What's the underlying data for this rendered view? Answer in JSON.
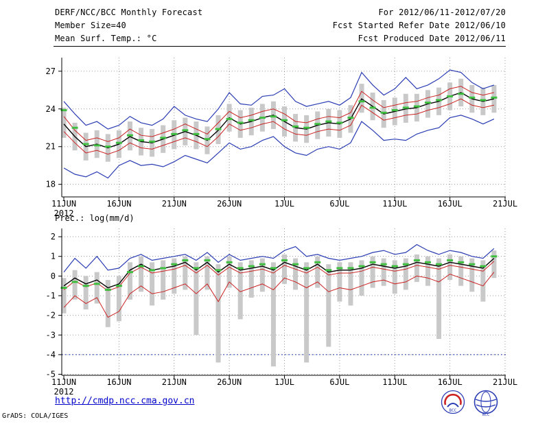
{
  "header": {
    "title": "DERF/NCC/BCC Monthly Forecast",
    "date_range": "For 2012/06/11-2012/07/20",
    "member_size": "Member Size=40",
    "refer_date": "Fcst Started Refer Date 2012/06/10",
    "produced_date": "Fcst Produced Date 2012/06/11"
  },
  "footer": {
    "url": "http://cmdp.ncc.cma.gov.cn",
    "credit": "GrADS: COLA/IGES",
    "logo_left": "BCC",
    "logo_right": "NCC"
  },
  "chart_data": [
    {
      "id": "mean-surface-temperature",
      "type": "line",
      "title": "Mean Surf. Temp.: °C",
      "xlabel": "",
      "ylabel": "",
      "grid": true,
      "x_tick_days": [
        0,
        5,
        10,
        15,
        20,
        25,
        30,
        35,
        40
      ],
      "x_tick_labels": [
        "11JUN",
        "16JUN",
        "21JUN",
        "26JUN",
        "1JUL",
        "6JUL",
        "11JUL",
        "16JUL",
        "21JUL"
      ],
      "x_first_tick_sublabel": "2012",
      "y_ticks": [
        18,
        21,
        24,
        27
      ],
      "ylim": [
        17.0,
        28.08
      ],
      "series": [
        {
          "name": "ensemble-spread-bar",
          "style": "bar",
          "color": "#c9c9c9",
          "high": [
            24.1,
            22.9,
            22.1,
            22.3,
            22.0,
            22.3,
            23.0,
            22.5,
            22.4,
            22.7,
            23.1,
            23.3,
            23.0,
            22.6,
            23.5,
            24.4,
            23.9,
            24.1,
            24.4,
            24.6,
            24.2,
            23.6,
            23.5,
            23.8,
            24.0,
            23.9,
            24.3,
            26.0,
            25.3,
            24.7,
            24.9,
            25.2,
            25.2,
            25.5,
            25.7,
            26.1,
            26.4,
            25.9,
            25.7,
            25.9
          ],
          "low": [
            21.7,
            20.7,
            19.9,
            20.1,
            19.8,
            20.1,
            20.7,
            20.3,
            20.2,
            20.5,
            20.8,
            21.1,
            20.8,
            20.4,
            21.2,
            22.2,
            21.7,
            21.9,
            22.2,
            22.4,
            21.8,
            21.4,
            21.3,
            21.6,
            21.8,
            21.7,
            22.1,
            23.7,
            23.1,
            22.5,
            22.7,
            22.9,
            23.0,
            23.3,
            23.5,
            23.9,
            24.2,
            23.7,
            23.5,
            23.7
          ]
        },
        {
          "name": "ensemble-max",
          "style": "line",
          "color": "#2a3cb4",
          "width": 1.2,
          "values": [
            24.6,
            23.6,
            22.7,
            23.0,
            22.4,
            22.7,
            23.4,
            22.9,
            22.7,
            23.2,
            24.2,
            23.5,
            23.2,
            23.0,
            24.0,
            25.3,
            24.4,
            24.3,
            25.0,
            25.1,
            25.6,
            24.6,
            24.2,
            24.4,
            24.6,
            24.3,
            24.9,
            26.9,
            25.9,
            25.1,
            25.6,
            26.5,
            25.6,
            25.9,
            26.4,
            27.1,
            26.9,
            26.1,
            25.6,
            25.9
          ]
        },
        {
          "name": "ensemble-min",
          "style": "line",
          "color": "#2a3cb4",
          "width": 1.2,
          "values": [
            19.3,
            18.8,
            18.6,
            19.0,
            18.5,
            19.5,
            19.9,
            19.5,
            19.6,
            19.4,
            19.8,
            20.3,
            20.0,
            19.7,
            20.5,
            21.3,
            20.8,
            21.0,
            21.5,
            21.8,
            21.0,
            20.5,
            20.3,
            20.8,
            21.0,
            20.8,
            21.3,
            23.0,
            22.3,
            21.5,
            21.6,
            21.5,
            22.0,
            22.3,
            22.5,
            23.3,
            23.5,
            23.2,
            22.8,
            23.2
          ]
        },
        {
          "name": "upper-quartile",
          "style": "line",
          "color": "#cc2222",
          "width": 1,
          "values": [
            23.4,
            22.3,
            21.5,
            21.7,
            21.4,
            21.7,
            22.4,
            21.9,
            21.8,
            22.1,
            22.4,
            22.8,
            22.4,
            22.0,
            22.9,
            23.8,
            23.3,
            23.5,
            23.8,
            24.0,
            23.6,
            23.0,
            22.9,
            23.2,
            23.4,
            23.3,
            23.7,
            25.4,
            24.7,
            24.1,
            24.3,
            24.5,
            24.6,
            24.9,
            25.1,
            25.6,
            25.8,
            25.3,
            25.1,
            25.3
          ]
        },
        {
          "name": "lower-quartile",
          "style": "line",
          "color": "#cc2222",
          "width": 1,
          "values": [
            22.2,
            21.3,
            20.5,
            20.7,
            20.4,
            20.7,
            21.3,
            20.9,
            20.8,
            21.1,
            21.4,
            21.7,
            21.4,
            21.0,
            21.8,
            22.8,
            22.3,
            22.5,
            22.8,
            23.0,
            22.4,
            22.0,
            21.9,
            22.2,
            22.4,
            22.3,
            22.7,
            24.3,
            23.7,
            23.1,
            23.3,
            23.5,
            23.6,
            23.9,
            24.1,
            24.4,
            24.8,
            24.3,
            24.1,
            24.3
          ]
        },
        {
          "name": "ensemble-mean",
          "style": "line",
          "color": "#000000",
          "width": 1.4,
          "values": [
            22.8,
            21.8,
            21.0,
            21.2,
            20.9,
            21.2,
            21.8,
            21.4,
            21.3,
            21.6,
            21.9,
            22.2,
            21.9,
            21.5,
            22.3,
            23.3,
            22.8,
            23.0,
            23.3,
            23.5,
            23.0,
            22.5,
            22.4,
            22.7,
            22.9,
            22.8,
            23.2,
            24.8,
            24.2,
            23.6,
            23.8,
            24.0,
            24.1,
            24.4,
            24.6,
            25.0,
            25.3,
            24.8,
            24.6,
            24.8
          ]
        },
        {
          "name": "ensemble-median",
          "style": "dash",
          "color": "#3fbf3f",
          "values": [
            23.9,
            22.5,
            21.2,
            21.1,
            21.0,
            21.3,
            21.9,
            21.5,
            21.4,
            21.7,
            22.0,
            22.3,
            22.0,
            21.6,
            22.4,
            23.2,
            22.9,
            23.1,
            23.3,
            23.4,
            23.1,
            22.6,
            22.5,
            22.8,
            23.0,
            22.9,
            23.3,
            24.6,
            24.1,
            23.7,
            23.9,
            24.1,
            24.2,
            24.5,
            24.7,
            25.0,
            25.2,
            24.9,
            24.7,
            24.9
          ]
        }
      ]
    },
    {
      "id": "precipitation",
      "type": "line",
      "title": "Prec.: log(mm/d)",
      "xlabel": "",
      "ylabel": "",
      "grid": true,
      "x_tick_days": [
        0,
        5,
        10,
        15,
        20,
        25,
        30,
        35,
        40
      ],
      "x_tick_labels": [
        "11JUN",
        "16JUN",
        "21JUN",
        "26JUN",
        "1JUL",
        "6JUL",
        "11JUL",
        "16JUL",
        "21JUL"
      ],
      "x_first_tick_sublabel": "2012",
      "y_ticks": [
        -5,
        -4,
        -3,
        -2,
        -1,
        0,
        1,
        2
      ],
      "ylim": [
        -5.05,
        2.42
      ],
      "reference_line": {
        "value": -4,
        "color": "#2a3cb4",
        "style": "dotted"
      },
      "series": [
        {
          "name": "reference-line",
          "style": "dotted-line",
          "color": "#2a3cb4",
          "value": -4
        },
        {
          "name": "ensemble-spread-bar",
          "style": "bar",
          "color": "#c9c9c9",
          "high": [
            -0.1,
            0.3,
            0.0,
            0.2,
            -0.2,
            0.0,
            0.7,
            1.0,
            0.7,
            0.8,
            0.9,
            1.0,
            0.7,
            1.0,
            0.6,
            1.0,
            0.7,
            0.8,
            0.9,
            0.7,
            1.1,
            0.9,
            0.7,
            1.0,
            0.6,
            0.7,
            0.7,
            0.8,
            1.0,
            0.9,
            0.8,
            0.9,
            1.1,
            1.0,
            0.9,
            1.1,
            1.0,
            0.9,
            0.8,
            1.3
          ],
          "low": [
            -1.9,
            -1.2,
            -1.7,
            -1.4,
            -2.6,
            -2.3,
            -1.2,
            -0.8,
            -1.5,
            -1.2,
            -0.9,
            -0.7,
            -3.0,
            -0.7,
            -4.4,
            -0.6,
            -2.2,
            -1.1,
            -0.8,
            -4.6,
            -0.4,
            -0.7,
            -4.4,
            -0.6,
            -3.6,
            -1.3,
            -1.5,
            -1.0,
            -0.6,
            -0.5,
            -0.9,
            -0.7,
            -0.3,
            -0.5,
            -3.2,
            -0.2,
            -0.5,
            -0.8,
            -1.3,
            -0.1
          ]
        },
        {
          "name": "ensemble-max",
          "style": "line",
          "color": "#2a3cb4",
          "width": 1.2,
          "values": [
            0.2,
            0.9,
            0.4,
            1.0,
            0.3,
            0.4,
            0.9,
            1.1,
            0.8,
            0.9,
            1.0,
            1.1,
            0.8,
            1.2,
            0.7,
            1.1,
            0.8,
            0.9,
            1.0,
            0.9,
            1.3,
            1.5,
            1.0,
            1.1,
            0.9,
            0.8,
            0.9,
            1.0,
            1.2,
            1.3,
            1.1,
            1.2,
            1.6,
            1.3,
            1.1,
            1.3,
            1.2,
            1.0,
            0.9,
            1.4
          ]
        },
        {
          "name": "upper-quartile",
          "style": "line",
          "color": "#cc2222",
          "width": 1,
          "values": [
            -0.7,
            -0.25,
            -0.55,
            -0.35,
            -0.75,
            -0.55,
            0.15,
            0.45,
            0.15,
            0.25,
            0.35,
            0.55,
            0.15,
            0.55,
            0.05,
            0.45,
            0.15,
            0.25,
            0.35,
            0.15,
            0.55,
            0.35,
            0.15,
            0.45,
            0.05,
            0.15,
            0.15,
            0.25,
            0.45,
            0.35,
            0.25,
            0.35,
            0.55,
            0.45,
            0.35,
            0.55,
            0.45,
            0.35,
            0.25,
            0.75
          ]
        },
        {
          "name": "lower-quartile",
          "style": "line",
          "color": "#cc2222",
          "width": 1,
          "values": [
            -1.6,
            -1.0,
            -1.4,
            -1.1,
            -2.1,
            -1.8,
            -0.9,
            -0.5,
            -0.9,
            -0.8,
            -0.6,
            -0.4,
            -0.9,
            -0.4,
            -1.3,
            -0.3,
            -0.8,
            -0.6,
            -0.4,
            -0.7,
            -0.1,
            -0.3,
            -0.6,
            -0.3,
            -0.8,
            -0.6,
            -0.7,
            -0.5,
            -0.3,
            -0.2,
            -0.4,
            -0.3,
            0.0,
            -0.1,
            -0.3,
            0.1,
            -0.1,
            -0.3,
            -0.5,
            0.2
          ]
        },
        {
          "name": "ensemble-mean",
          "style": "line",
          "color": "#000000",
          "width": 1.4,
          "values": [
            -0.5,
            -0.1,
            -0.4,
            -0.2,
            -0.6,
            -0.4,
            0.3,
            0.6,
            0.3,
            0.4,
            0.5,
            0.7,
            0.3,
            0.7,
            0.2,
            0.6,
            0.3,
            0.4,
            0.5,
            0.3,
            0.7,
            0.5,
            0.3,
            0.6,
            0.2,
            0.3,
            0.3,
            0.4,
            0.6,
            0.5,
            0.4,
            0.5,
            0.7,
            0.6,
            0.5,
            0.7,
            0.6,
            0.5,
            0.4,
            0.9
          ]
        },
        {
          "name": "ensemble-median",
          "style": "dash",
          "color": "#3fbf3f",
          "values": [
            -0.6,
            -0.3,
            -0.5,
            -0.4,
            -0.7,
            -0.5,
            0.2,
            0.5,
            0.3,
            0.4,
            0.6,
            0.8,
            0.4,
            0.8,
            0.3,
            0.7,
            0.4,
            0.5,
            0.6,
            0.4,
            0.8,
            0.6,
            0.4,
            0.7,
            0.3,
            0.4,
            0.4,
            0.5,
            0.7,
            0.6,
            0.5,
            0.6,
            0.8,
            0.7,
            0.6,
            0.8,
            0.7,
            0.6,
            0.5,
            1.0
          ]
        }
      ]
    }
  ]
}
